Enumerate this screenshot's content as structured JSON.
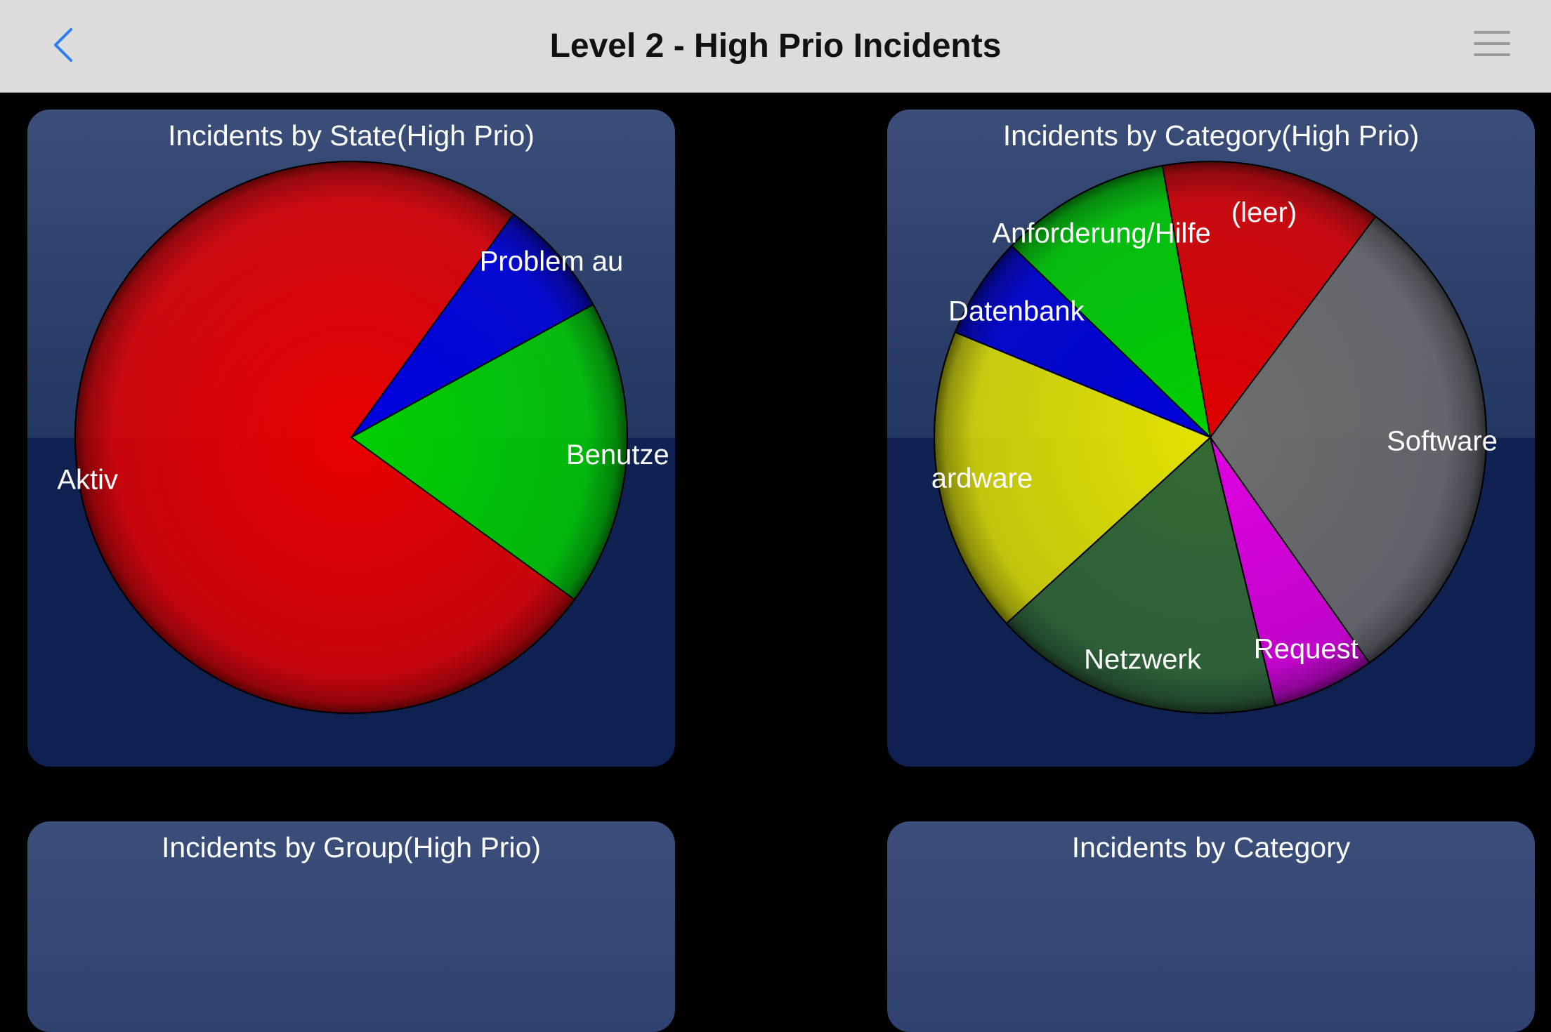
{
  "header": {
    "title": "Level 2 - High Prio Incidents",
    "back_icon": "chevron-left-icon",
    "menu_icon": "hamburger-menu-icon",
    "accent_color": "#2f7df6"
  },
  "panels": [
    {
      "title": "Incidents by State(High Prio)"
    },
    {
      "title": "Incidents by Category(High Prio)"
    },
    {
      "title": "Incidents by Group(High Prio)"
    },
    {
      "title": "Incidents by Category"
    }
  ],
  "chart_data": [
    {
      "type": "pie",
      "title": "Incidents by State(High Prio)",
      "labels": [
        "Aktiv",
        "Problem au",
        "Benutze"
      ],
      "values": [
        75,
        7,
        18
      ],
      "colors": [
        "#e80000",
        "#0000e0",
        "#00d000"
      ]
    },
    {
      "type": "pie",
      "title": "Incidents by Category(High Prio)",
      "labels": [
        "(leer)",
        "Software",
        "Request",
        "Netzwerk",
        "ardware",
        "Datenbank",
        "Anforderung/Hilfe"
      ],
      "values": [
        13,
        30,
        6,
        17,
        18,
        6,
        10
      ],
      "colors": [
        "#e00000",
        "#6e6e6e",
        "#e000e0",
        "#336a33",
        "#e3e300",
        "#0000d8",
        "#00d000"
      ]
    }
  ]
}
